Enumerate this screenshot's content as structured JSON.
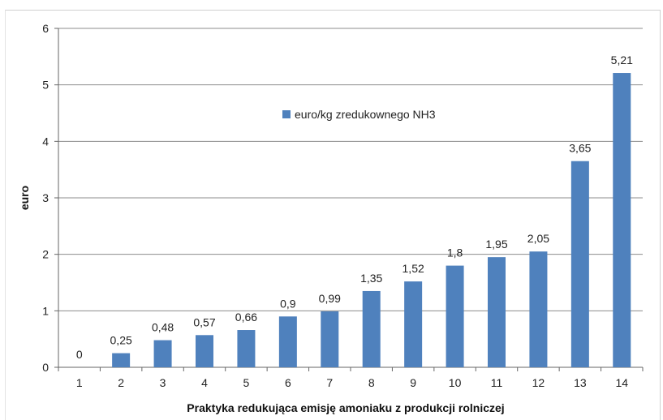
{
  "chart_data": {
    "type": "bar",
    "categories": [
      "1",
      "2",
      "3",
      "4",
      "5",
      "6",
      "7",
      "8",
      "9",
      "10",
      "11",
      "12",
      "13",
      "14"
    ],
    "series": [
      {
        "name": "euro/kg zredukownego NH3",
        "values": [
          0,
          0.25,
          0.48,
          0.57,
          0.66,
          0.9,
          0.99,
          1.35,
          1.52,
          1.8,
          1.95,
          2.05,
          3.65,
          5.21
        ],
        "labels": [
          "0",
          "0,25",
          "0,48",
          "0,57",
          "0,66",
          "0,9",
          "0,99",
          "1,35",
          "1,52",
          "1,8",
          "1,95",
          "2,05",
          "3,65",
          "5,21"
        ]
      }
    ],
    "title": "",
    "xlabel": "Praktyka  redukująca  emisję amoniaku  z produkcji  rolniczej",
    "ylabel": "euro",
    "ylim": [
      0,
      6
    ],
    "yticks": [
      0,
      1,
      2,
      3,
      4,
      5,
      6
    ],
    "grid": true,
    "legend_position": "inside-upper-center",
    "bar_color": "#4f81bd"
  }
}
